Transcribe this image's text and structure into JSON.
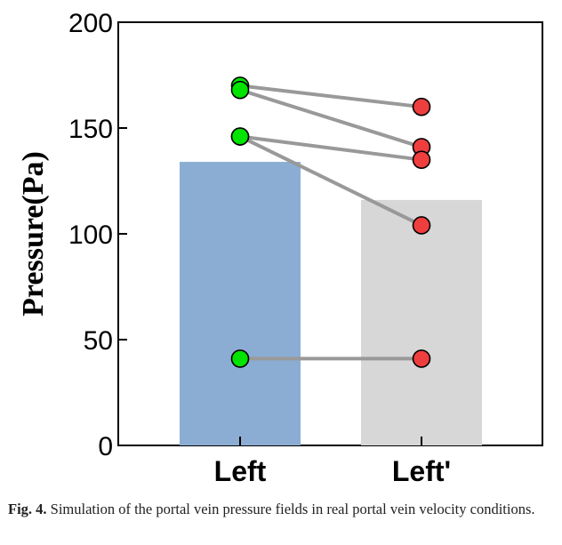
{
  "chart_data": {
    "type": "bar",
    "categories": [
      "Left",
      "Left'"
    ],
    "values": [
      134,
      116
    ],
    "bar_colors": [
      "#8badd3",
      "#d7d7d7"
    ],
    "ylabel": "Pressure(Pa)",
    "xlabel": "",
    "ylim": [
      0,
      200
    ],
    "yticks": [
      0,
      50,
      100,
      150,
      200
    ],
    "paired_points": [
      {
        "Left": 170,
        "Left'": 160
      },
      {
        "Left": 168,
        "Left'": 141
      },
      {
        "Left": 146,
        "Left'": 135
      },
      {
        "Left": 146,
        "Left'": 104
      },
      {
        "Left": 41,
        "Left'": 41
      }
    ],
    "point_colors": {
      "Left": "#00e400",
      "Left'": "#ef3e3e"
    },
    "line_color": "#999999"
  },
  "caption": {
    "label": "Fig. 4.",
    "text": "Simulation of the portal vein pressure fields in real portal vein velocity conditions."
  }
}
